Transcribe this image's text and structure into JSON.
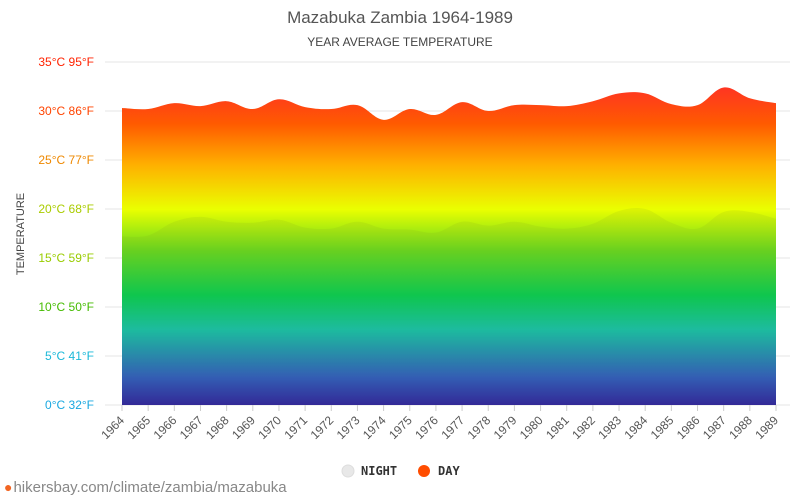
{
  "chart_data": {
    "type": "area",
    "title": "Mazabuka Zambia 1964-1989",
    "subtitle": "YEAR AVERAGE TEMPERATURE",
    "ylabel": "TEMPERATURE",
    "xlabel": "",
    "categories": [
      "1964",
      "1965",
      "1966",
      "1967",
      "1968",
      "1969",
      "1970",
      "1971",
      "1972",
      "1973",
      "1974",
      "1975",
      "1976",
      "1977",
      "1978",
      "1979",
      "1980",
      "1981",
      "1982",
      "1983",
      "1984",
      "1985",
      "1986",
      "1987",
      "1988",
      "1989"
    ],
    "series": [
      {
        "name": "NIGHT",
        "values": [
          17.2,
          17.3,
          18.7,
          19.2,
          18.7,
          18.6,
          18.9,
          18.1,
          18.0,
          18.7,
          18.0,
          17.9,
          17.6,
          18.7,
          18.3,
          18.7,
          18.2,
          18.0,
          18.5,
          19.8,
          20.0,
          18.6,
          18.0,
          19.7,
          19.7,
          19.0
        ]
      },
      {
        "name": "DAY",
        "values": [
          30.3,
          30.2,
          30.8,
          30.5,
          31.0,
          30.2,
          31.2,
          30.4,
          30.2,
          30.6,
          29.1,
          30.2,
          29.6,
          30.9,
          30.0,
          30.6,
          30.6,
          30.5,
          31.0,
          31.8,
          31.8,
          30.7,
          30.6,
          32.4,
          31.3,
          30.8
        ]
      }
    ],
    "y_ticks": [
      "0°C 32°F",
      "5°C 41°F",
      "10°C 50°F",
      "15°C 59°F",
      "20°C 68°F",
      "25°C 77°F",
      "30°C 86°F",
      "35°C 95°F"
    ],
    "y_tick_values": [
      0,
      5,
      10,
      15,
      20,
      25,
      30,
      35
    ],
    "ylim": [
      0,
      35
    ],
    "grid": true,
    "legend_position": "bottom",
    "colors": {
      "day_legend": "#ff4d00",
      "night_legend": "#e8e8e8",
      "gradient_stops": [
        "#2a1aa8",
        "#2a55c8",
        "#10c0b0",
        "#00cc55",
        "#66d820",
        "#eaff00",
        "#ffb000",
        "#ff5a00",
        "#ff1a3a"
      ],
      "tick_label_colors": [
        "#1aa8e0",
        "#1ab8d8",
        "#44bb00",
        "#99cc00",
        "#aacc00",
        "#ee8800",
        "#ff4400",
        "#ff2200"
      ]
    }
  },
  "source": {
    "text": "hikersbay.com/climate/zambia/mazabuka",
    "icon": "map-pin-icon"
  }
}
